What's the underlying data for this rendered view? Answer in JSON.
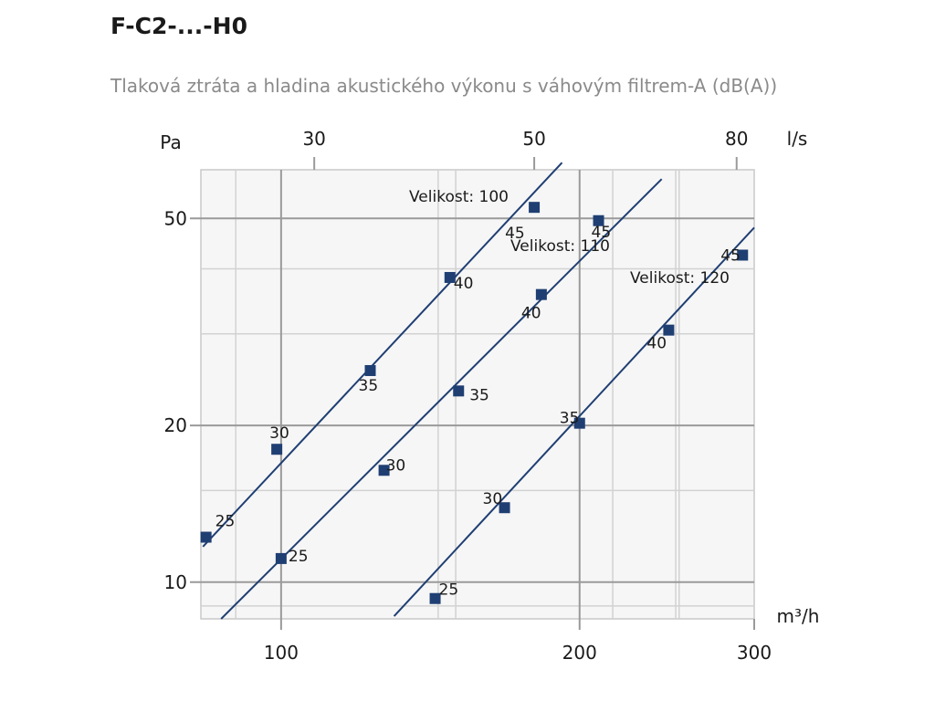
{
  "title": "F-C2-...-H0",
  "subtitle": "Tlaková ztráta a hladina akustického výkonu s váhovým filtrem-A (dB(A))",
  "chart_data": {
    "type": "line",
    "x_scale": "log",
    "y_scale": "log",
    "xlabel": "m³/h",
    "x2label": "l/s",
    "ylabel": "Pa",
    "xlim": [
      83,
      300
    ],
    "ylim": [
      8.5,
      62
    ],
    "x_ticks": [
      100,
      200,
      300
    ],
    "x2_ticks": [
      30,
      50,
      80
    ],
    "y_ticks": [
      10,
      20,
      50
    ],
    "grid": true,
    "series": [
      {
        "name": "Velikost: 100",
        "line": [
          [
            83.4,
            11.7
          ],
          [
            192,
            64
          ]
        ],
        "points": [
          {
            "x": 84,
            "y": 12.2,
            "label": "25"
          },
          {
            "x": 99,
            "y": 18.0,
            "label": "30"
          },
          {
            "x": 123,
            "y": 25.5,
            "label": "35"
          },
          {
            "x": 148,
            "y": 38.5,
            "label": "40"
          },
          {
            "x": 180,
            "y": 52.5,
            "label": "45"
          }
        ]
      },
      {
        "name": "Velikost: 110",
        "line": [
          [
            87,
            8.5
          ],
          [
            242,
            59.5
          ]
        ],
        "points": [
          {
            "x": 100,
            "y": 11.1,
            "label": "25"
          },
          {
            "x": 127,
            "y": 16.4,
            "label": "30"
          },
          {
            "x": 151,
            "y": 23.3,
            "label": "35"
          },
          {
            "x": 183,
            "y": 35.7,
            "label": "40"
          },
          {
            "x": 209,
            "y": 49.5,
            "label": "45"
          }
        ]
      },
      {
        "name": "Velikost: 120",
        "line": [
          [
            130,
            8.6
          ],
          [
            300,
            48
          ]
        ],
        "points": [
          {
            "x": 143,
            "y": 9.3,
            "label": "25"
          },
          {
            "x": 168,
            "y": 13.9,
            "label": "30"
          },
          {
            "x": 200,
            "y": 20.2,
            "label": "35"
          },
          {
            "x": 246,
            "y": 30.5,
            "label": "40"
          },
          {
            "x": 292,
            "y": 42.5,
            "label": "45"
          }
        ]
      }
    ]
  }
}
